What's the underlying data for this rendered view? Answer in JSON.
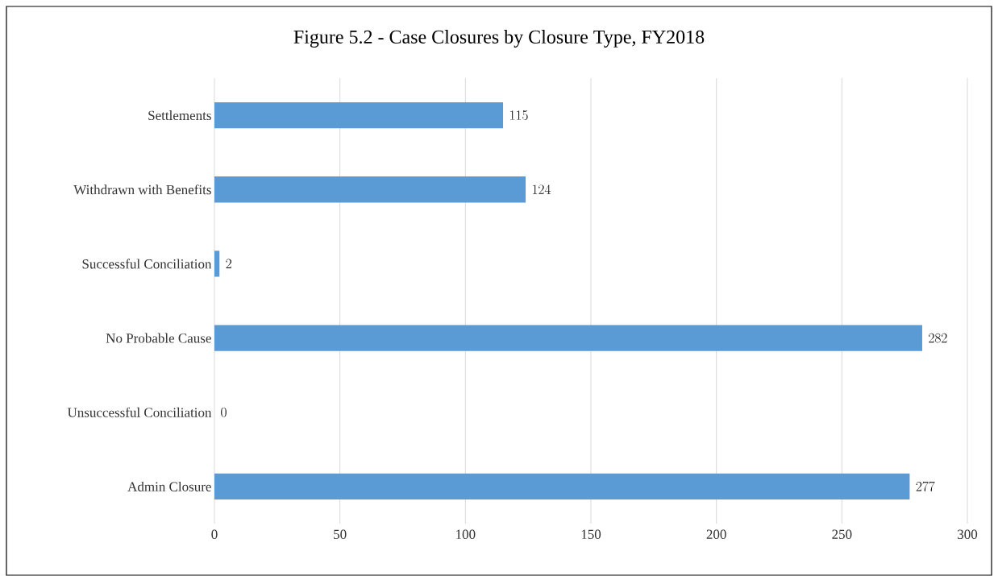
{
  "chart_data": {
    "type": "bar",
    "orientation": "horizontal",
    "title": "Figure 5.2 - Case Closures by Closure Type, FY2018",
    "categories": [
      "Settlements",
      "Withdrawn with Benefits",
      "Successful Conciliation",
      "No Probable Cause",
      "Unsuccessful Conciliation",
      "Admin Closure"
    ],
    "values": [
      115,
      124,
      2,
      282,
      0,
      277
    ],
    "color": "#5b9bd5",
    "xlim": [
      0,
      300
    ],
    "xticks": [
      0,
      50,
      100,
      150,
      200,
      250,
      300
    ],
    "grid": "x",
    "data_labels": true
  }
}
